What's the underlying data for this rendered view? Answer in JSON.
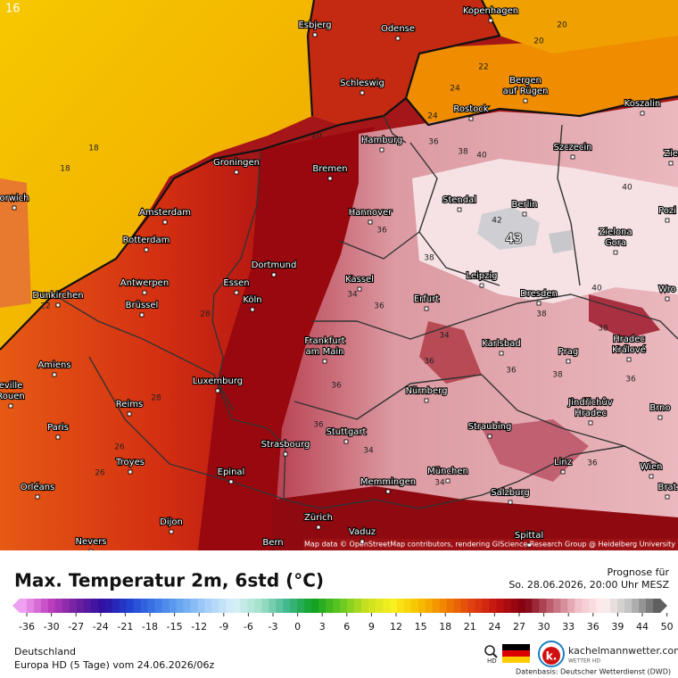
{
  "map": {
    "corner_label": "16",
    "cities": [
      "Esbjerg",
      "Odense",
      "Kopenhagen",
      "Schleswig",
      [
        "Bergen",
        "auf Rügen"
      ],
      "Rostock",
      "Koszalin",
      "Hamburg",
      "Szczecin",
      "Groningen",
      "Bremen",
      "Amsterdam",
      "Hannover",
      "Stendal",
      "Berlin",
      [
        "Zielona",
        "Gora"
      ],
      "Rotterdam",
      "Dortmund",
      "Leipzig",
      "Antwerpen",
      "Essen",
      "Kassel",
      "Erfurt",
      "Dresden",
      "Dunkirchen",
      "Brüssel",
      "Köln",
      [
        "Hradec",
        "Králové"
      ],
      [
        "Frankfurt",
        "am Main"
      ],
      "Karlsbad",
      "Prag",
      "Amiens",
      "Luxemburg",
      "Nürnberg",
      [
        "Jindřichův",
        "Hradec"
      ],
      "Brno",
      "Reims",
      "Paris",
      "Stuttgart",
      "Straubing",
      "Strasbourg",
      "Troyes",
      "München",
      "Linz",
      "Wien",
      "Epinal",
      "Memmingen",
      "Orléans",
      "Salzburg",
      "Dijon",
      "Zürich",
      "Vaduz",
      "Nevers",
      "Bern",
      "Spittal",
      "Pozi",
      "Wro",
      "Zie",
      "Brat",
      [
        "eville",
        "Rouen"
      ],
      "orwich"
    ],
    "contour_labels": [
      "18",
      "18",
      "20",
      "20",
      "22",
      "22",
      "24",
      "26",
      "28",
      "28",
      "34",
      "36",
      "38",
      "40",
      "42",
      "43",
      "36",
      "38",
      "36",
      "34",
      "36",
      "36",
      "36",
      "34",
      "38",
      "36",
      "38",
      "40",
      "40",
      "36",
      "34",
      "38",
      "36",
      "20",
      "24",
      "26"
    ],
    "attribution": "Map data © OpenStreetMap contributors, rendering GIScience Research Group @ Heidelberg University"
  },
  "legend": {
    "title": "Max. Temperatur 2m, 6std (°C)",
    "forecast_label": "Prognose für",
    "forecast_time": "So. 28.06.2026, 20:00 Uhr MESZ",
    "scale_ticks": [
      -36,
      -30,
      -27,
      -24,
      -21,
      -18,
      -15,
      -12,
      -9,
      -6,
      -3,
      0,
      3,
      6,
      9,
      12,
      15,
      18,
      21,
      24,
      27,
      30,
      33,
      36,
      39,
      44,
      50
    ]
  },
  "footer": {
    "region": "Deutschland",
    "model_run": "Europa HD (5 Tage) vom  24.06.2026/06z",
    "zoom_icon": "HD",
    "brand": "kachelmannwetter.com",
    "brand_sub": "WETTER HD",
    "brand_logo": "k.",
    "source": "Datenbasis: Deutscher Wetterdienst (DWD)"
  }
}
